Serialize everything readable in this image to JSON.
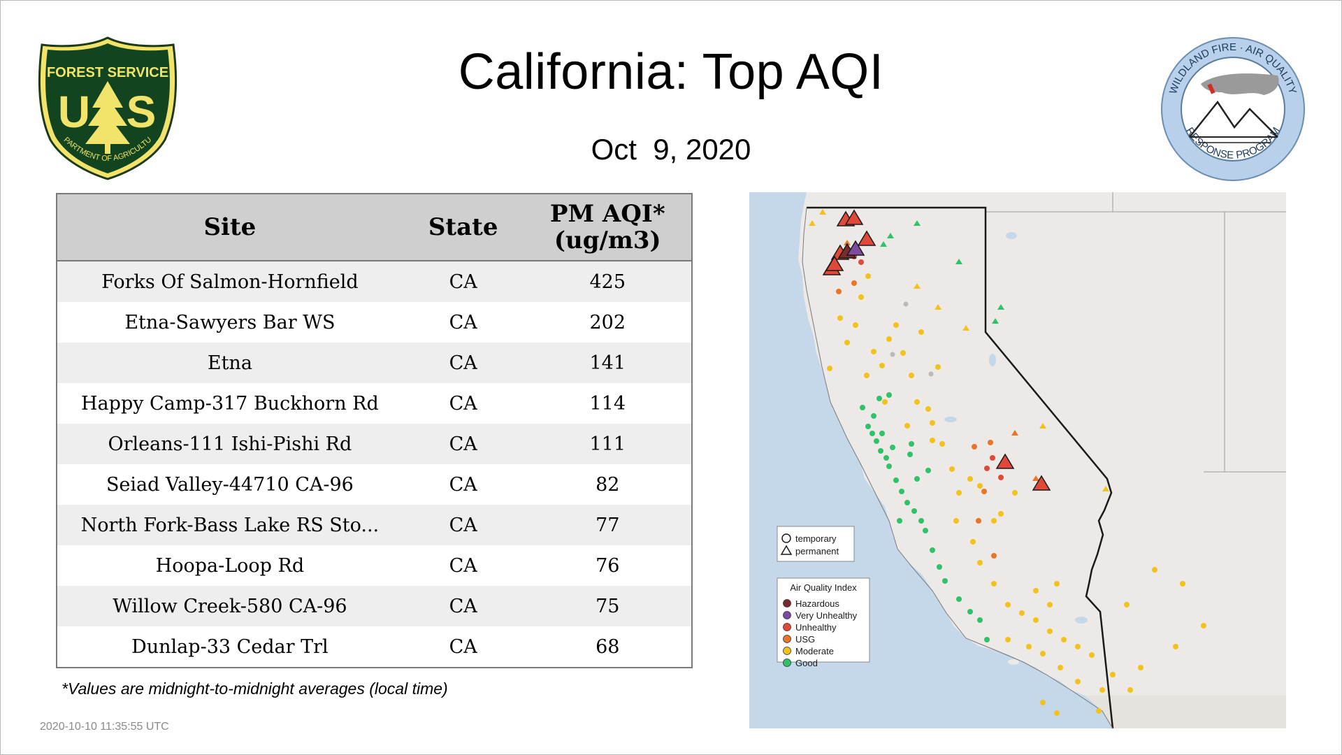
{
  "header": {
    "title": "California: Top AQI",
    "date": "Oct  9, 2020"
  },
  "logos": {
    "forest_service": {
      "top_text": "FOREST SERVICE",
      "letters": "U S",
      "bottom_text": "DEPARTMENT OF AGRICULTURE",
      "colors": {
        "shield": "#12451f",
        "gold": "#f2e36b"
      }
    },
    "wildland": {
      "ring_text": "WILDLAND FIRE · AIR QUALITY · RESPONSE PROGRAM",
      "colors": {
        "ring": "#b8d0ea",
        "smoke": "#9a9a9a"
      }
    }
  },
  "table": {
    "headers": {
      "site": "Site",
      "state": "State",
      "pm_line1": "PM AQI*",
      "pm_line2": "(ug/m3)"
    },
    "rows": [
      {
        "site": "Forks Of Salmon-Hornfield",
        "state": "CA",
        "value": "425"
      },
      {
        "site": "Etna-Sawyers Bar WS",
        "state": "CA",
        "value": "202"
      },
      {
        "site": "Etna",
        "state": "CA",
        "value": "141"
      },
      {
        "site": "Happy Camp-317 Buckhorn Rd",
        "state": "CA",
        "value": "114"
      },
      {
        "site": "Orleans-111 Ishi-Pishi Rd",
        "state": "CA",
        "value": "111"
      },
      {
        "site": "Seiad Valley-44710 CA-96",
        "state": "CA",
        "value": "82"
      },
      {
        "site": "North Fork-Bass Lake RS Sto...",
        "state": "CA",
        "value": "77"
      },
      {
        "site": "Hoopa-Loop Rd",
        "state": "CA",
        "value": "76"
      },
      {
        "site": "Willow Creek-580 CA-96",
        "state": "CA",
        "value": "75"
      },
      {
        "site": "Dunlap-33 Cedar Trl",
        "state": "CA",
        "value": "68"
      }
    ]
  },
  "footnote": "*Values are midnight-to-midnight averages (local time)",
  "timestamp": "2020-10-10 11:35:55 UTC",
  "map": {
    "legend_shapes": {
      "temporary": "temporary",
      "permanent": "permanent"
    },
    "legend_aqi": {
      "title": "Air Quality Index",
      "items": [
        {
          "label": "Hazardous",
          "color": "#7a2b2b"
        },
        {
          "label": "Very Unhealthy",
          "color": "#7e4aa0"
        },
        {
          "label": "Unhealthy",
          "color": "#e0483a"
        },
        {
          "label": "USG",
          "color": "#e8762a"
        },
        {
          "label": "Moderate",
          "color": "#f2c21c"
        },
        {
          "label": "Good",
          "color": "#2fc26a"
        }
      ]
    },
    "colors": {
      "ocean": "#c4d8ea",
      "land": "#ece9e6",
      "state_line": "#1a1a1a"
    }
  }
}
